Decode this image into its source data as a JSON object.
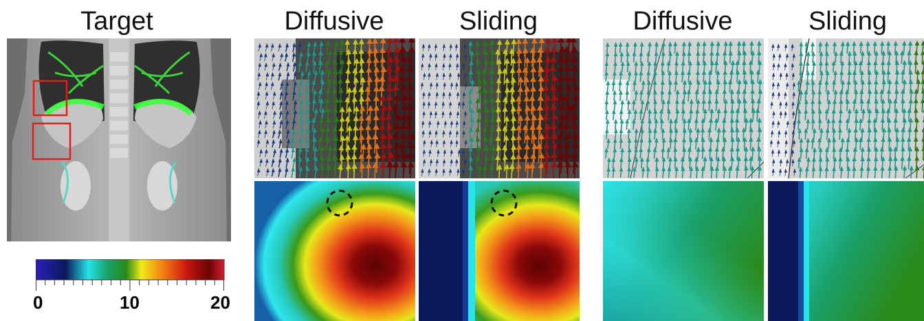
{
  "titles": {
    "target": "Target",
    "diffusive_1": "Diffusive",
    "sliding_1": "Sliding",
    "diffusive_2": "Diffusive",
    "sliding_2": "Sliding"
  },
  "colorbar": {
    "min_label": "0",
    "mid_label": "10",
    "max_label": "20",
    "colors": [
      "#2a1fb8",
      "#0a1a5c",
      "#27e3ea",
      "#1aa06a",
      "#2a8a1a",
      "#f0ea1a",
      "#f27a14",
      "#c8180e",
      "#6a0404",
      "#d81e2e"
    ]
  },
  "colors": {
    "roi_box": "#e0201a",
    "overlay": "#3cff3c",
    "dashed_circle": "#111111"
  }
}
